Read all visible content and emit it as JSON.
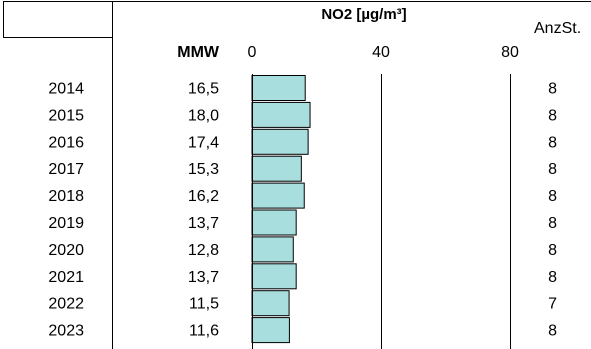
{
  "chart_data": {
    "type": "bar",
    "orientation": "horizontal",
    "title": "NO2 [µg/m³]",
    "mean_header": "MMW",
    "count_header": "AnzSt.",
    "categories": [
      "2014",
      "2015",
      "2016",
      "2017",
      "2018",
      "2019",
      "2020",
      "2021",
      "2022",
      "2023"
    ],
    "values": [
      16.5,
      18.0,
      17.4,
      15.3,
      16.2,
      13.7,
      12.8,
      13.7,
      11.5,
      11.6
    ],
    "value_labels": [
      "16,5",
      "18,0",
      "17,4",
      "15,3",
      "16,2",
      "13,7",
      "12,8",
      "13,7",
      "11,5",
      "11,6"
    ],
    "counts": [
      "8",
      "8",
      "8",
      "8",
      "8",
      "8",
      "8",
      "8",
      "7",
      "8"
    ],
    "xlim": [
      0,
      80
    ],
    "ticks": [
      0,
      40,
      80
    ],
    "tick_labels": [
      "0",
      "40",
      "80"
    ],
    "grid": true,
    "bar_color": "#a8dede",
    "bar_edge_color": "#000000"
  }
}
